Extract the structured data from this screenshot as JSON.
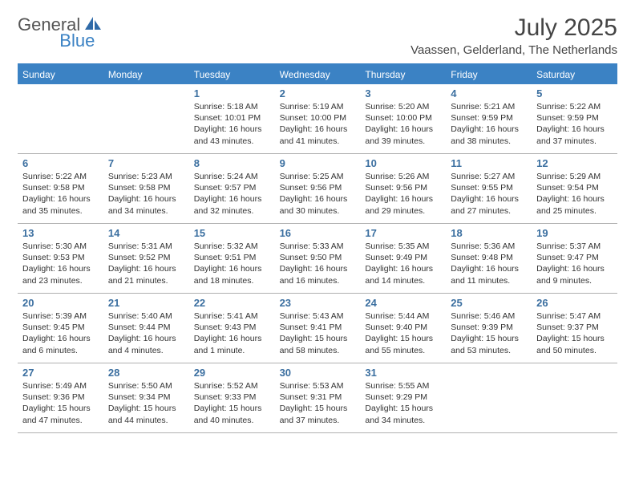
{
  "branding": {
    "text1": "General",
    "text2": "Blue",
    "icon_fill": "#2f6aa8"
  },
  "header": {
    "title": "July 2025",
    "location": "Vaassen, Gelderland, The Netherlands"
  },
  "colors": {
    "header_bar": "#3b82c4",
    "header_text": "#ffffff",
    "daynum": "#3b6fa0",
    "grid_border": "#b0b0b0",
    "text": "#333333"
  },
  "day_names": [
    "Sunday",
    "Monday",
    "Tuesday",
    "Wednesday",
    "Thursday",
    "Friday",
    "Saturday"
  ],
  "weeks": [
    [
      {
        "day": "",
        "lines": []
      },
      {
        "day": "",
        "lines": []
      },
      {
        "day": "1",
        "lines": [
          "Sunrise: 5:18 AM",
          "Sunset: 10:01 PM",
          "Daylight: 16 hours",
          "and 43 minutes."
        ]
      },
      {
        "day": "2",
        "lines": [
          "Sunrise: 5:19 AM",
          "Sunset: 10:00 PM",
          "Daylight: 16 hours",
          "and 41 minutes."
        ]
      },
      {
        "day": "3",
        "lines": [
          "Sunrise: 5:20 AM",
          "Sunset: 10:00 PM",
          "Daylight: 16 hours",
          "and 39 minutes."
        ]
      },
      {
        "day": "4",
        "lines": [
          "Sunrise: 5:21 AM",
          "Sunset: 9:59 PM",
          "Daylight: 16 hours",
          "and 38 minutes."
        ]
      },
      {
        "day": "5",
        "lines": [
          "Sunrise: 5:22 AM",
          "Sunset: 9:59 PM",
          "Daylight: 16 hours",
          "and 37 minutes."
        ]
      }
    ],
    [
      {
        "day": "6",
        "lines": [
          "Sunrise: 5:22 AM",
          "Sunset: 9:58 PM",
          "Daylight: 16 hours",
          "and 35 minutes."
        ]
      },
      {
        "day": "7",
        "lines": [
          "Sunrise: 5:23 AM",
          "Sunset: 9:58 PM",
          "Daylight: 16 hours",
          "and 34 minutes."
        ]
      },
      {
        "day": "8",
        "lines": [
          "Sunrise: 5:24 AM",
          "Sunset: 9:57 PM",
          "Daylight: 16 hours",
          "and 32 minutes."
        ]
      },
      {
        "day": "9",
        "lines": [
          "Sunrise: 5:25 AM",
          "Sunset: 9:56 PM",
          "Daylight: 16 hours",
          "and 30 minutes."
        ]
      },
      {
        "day": "10",
        "lines": [
          "Sunrise: 5:26 AM",
          "Sunset: 9:56 PM",
          "Daylight: 16 hours",
          "and 29 minutes."
        ]
      },
      {
        "day": "11",
        "lines": [
          "Sunrise: 5:27 AM",
          "Sunset: 9:55 PM",
          "Daylight: 16 hours",
          "and 27 minutes."
        ]
      },
      {
        "day": "12",
        "lines": [
          "Sunrise: 5:29 AM",
          "Sunset: 9:54 PM",
          "Daylight: 16 hours",
          "and 25 minutes."
        ]
      }
    ],
    [
      {
        "day": "13",
        "lines": [
          "Sunrise: 5:30 AM",
          "Sunset: 9:53 PM",
          "Daylight: 16 hours",
          "and 23 minutes."
        ]
      },
      {
        "day": "14",
        "lines": [
          "Sunrise: 5:31 AM",
          "Sunset: 9:52 PM",
          "Daylight: 16 hours",
          "and 21 minutes."
        ]
      },
      {
        "day": "15",
        "lines": [
          "Sunrise: 5:32 AM",
          "Sunset: 9:51 PM",
          "Daylight: 16 hours",
          "and 18 minutes."
        ]
      },
      {
        "day": "16",
        "lines": [
          "Sunrise: 5:33 AM",
          "Sunset: 9:50 PM",
          "Daylight: 16 hours",
          "and 16 minutes."
        ]
      },
      {
        "day": "17",
        "lines": [
          "Sunrise: 5:35 AM",
          "Sunset: 9:49 PM",
          "Daylight: 16 hours",
          "and 14 minutes."
        ]
      },
      {
        "day": "18",
        "lines": [
          "Sunrise: 5:36 AM",
          "Sunset: 9:48 PM",
          "Daylight: 16 hours",
          "and 11 minutes."
        ]
      },
      {
        "day": "19",
        "lines": [
          "Sunrise: 5:37 AM",
          "Sunset: 9:47 PM",
          "Daylight: 16 hours",
          "and 9 minutes."
        ]
      }
    ],
    [
      {
        "day": "20",
        "lines": [
          "Sunrise: 5:39 AM",
          "Sunset: 9:45 PM",
          "Daylight: 16 hours",
          "and 6 minutes."
        ]
      },
      {
        "day": "21",
        "lines": [
          "Sunrise: 5:40 AM",
          "Sunset: 9:44 PM",
          "Daylight: 16 hours",
          "and 4 minutes."
        ]
      },
      {
        "day": "22",
        "lines": [
          "Sunrise: 5:41 AM",
          "Sunset: 9:43 PM",
          "Daylight: 16 hours",
          "and 1 minute."
        ]
      },
      {
        "day": "23",
        "lines": [
          "Sunrise: 5:43 AM",
          "Sunset: 9:41 PM",
          "Daylight: 15 hours",
          "and 58 minutes."
        ]
      },
      {
        "day": "24",
        "lines": [
          "Sunrise: 5:44 AM",
          "Sunset: 9:40 PM",
          "Daylight: 15 hours",
          "and 55 minutes."
        ]
      },
      {
        "day": "25",
        "lines": [
          "Sunrise: 5:46 AM",
          "Sunset: 9:39 PM",
          "Daylight: 15 hours",
          "and 53 minutes."
        ]
      },
      {
        "day": "26",
        "lines": [
          "Sunrise: 5:47 AM",
          "Sunset: 9:37 PM",
          "Daylight: 15 hours",
          "and 50 minutes."
        ]
      }
    ],
    [
      {
        "day": "27",
        "lines": [
          "Sunrise: 5:49 AM",
          "Sunset: 9:36 PM",
          "Daylight: 15 hours",
          "and 47 minutes."
        ]
      },
      {
        "day": "28",
        "lines": [
          "Sunrise: 5:50 AM",
          "Sunset: 9:34 PM",
          "Daylight: 15 hours",
          "and 44 minutes."
        ]
      },
      {
        "day": "29",
        "lines": [
          "Sunrise: 5:52 AM",
          "Sunset: 9:33 PM",
          "Daylight: 15 hours",
          "and 40 minutes."
        ]
      },
      {
        "day": "30",
        "lines": [
          "Sunrise: 5:53 AM",
          "Sunset: 9:31 PM",
          "Daylight: 15 hours",
          "and 37 minutes."
        ]
      },
      {
        "day": "31",
        "lines": [
          "Sunrise: 5:55 AM",
          "Sunset: 9:29 PM",
          "Daylight: 15 hours",
          "and 34 minutes."
        ]
      },
      {
        "day": "",
        "lines": []
      },
      {
        "day": "",
        "lines": []
      }
    ]
  ]
}
